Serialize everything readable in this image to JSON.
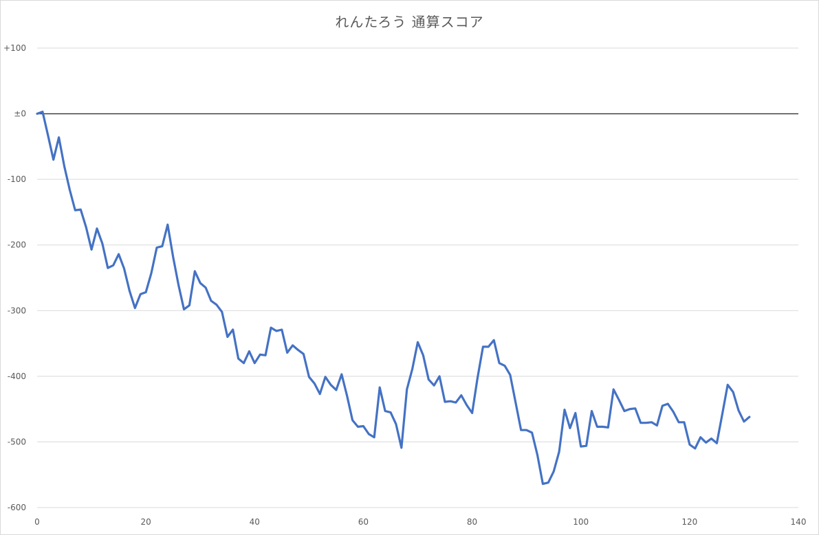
{
  "chart_data": {
    "type": "line",
    "title": "れんたろう 通算スコア",
    "xlabel": "",
    "ylabel": "",
    "xlim": [
      0,
      140
    ],
    "ylim": [
      -600,
      100
    ],
    "x_ticks": [
      0,
      20,
      40,
      60,
      80,
      100,
      120,
      140
    ],
    "x_tick_labels": [
      "0",
      "20",
      "40",
      "60",
      "80",
      "100",
      "120",
      "140"
    ],
    "y_ticks": [
      100,
      0,
      -100,
      -200,
      -300,
      -400,
      -500,
      -600
    ],
    "y_tick_labels": [
      "+100",
      "±0",
      "-100",
      "-200",
      "-300",
      "-400",
      "-500",
      "-600"
    ],
    "grid": true,
    "colors": {
      "series": "#4472c4",
      "zero_line": "#404040",
      "grid": "#d9d9d9"
    },
    "series": [
      {
        "values": [
          0,
          3,
          -33,
          -70,
          -36,
          -80,
          -116,
          -147,
          -146,
          -173,
          -207,
          -175,
          -198,
          -235,
          -231,
          -214,
          -236,
          -270,
          -296,
          -275,
          -272,
          -243,
          -204,
          -202,
          -169,
          -218,
          -261,
          -298,
          -292,
          -240,
          -258,
          -265,
          -285,
          -291,
          -302,
          -340,
          -329,
          -373,
          -380,
          -362,
          -380,
          -367,
          -368,
          -326,
          -331,
          -329,
          -364,
          -353,
          -360,
          -366,
          -401,
          -411,
          -427,
          -401,
          -413,
          -421,
          -397,
          -430,
          -467,
          -477,
          -476,
          -488,
          -493,
          -417,
          -453,
          -455,
          -473,
          -509,
          -420,
          -389,
          -348,
          -368,
          -405,
          -414,
          -400,
          -439,
          -438,
          -440,
          -429,
          -444,
          -456,
          -402,
          -355,
          -355,
          -345,
          -380,
          -384,
          -398,
          -440,
          -482,
          -482,
          -486,
          -520,
          -564,
          -562,
          -545,
          -515,
          -451,
          -479,
          -456,
          -507,
          -506,
          -453,
          -477,
          -477,
          -478,
          -420,
          -436,
          -453,
          -450,
          -449,
          -471,
          -471,
          -470,
          -475,
          -445,
          -442,
          -454,
          -470,
          -470,
          -504,
          -510,
          -493,
          -501,
          -495,
          -502,
          -458,
          -413,
          -424,
          -452,
          -469,
          -462
        ]
      }
    ]
  }
}
